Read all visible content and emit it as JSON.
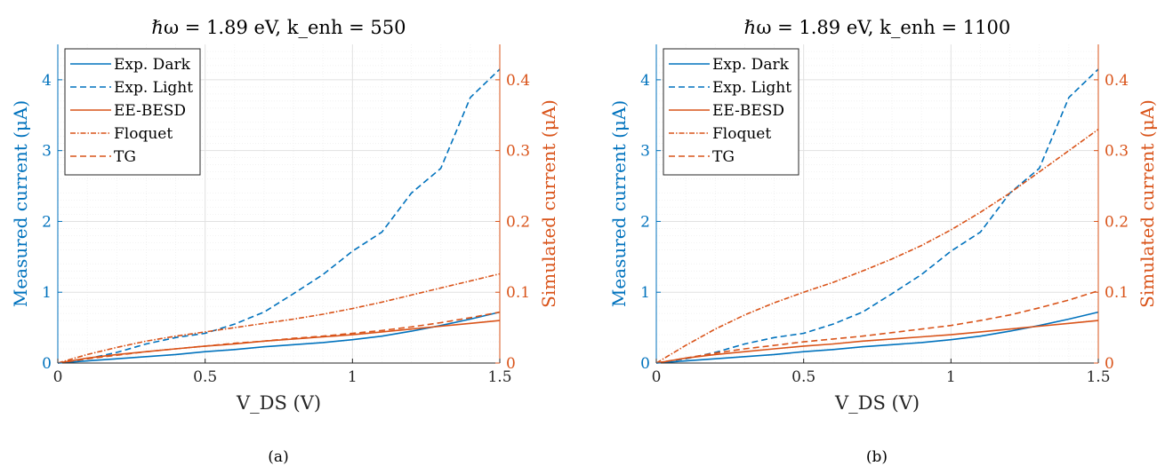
{
  "colors": {
    "measured": "#0072BD",
    "simulated": "#D95319",
    "axis": "#262626",
    "grid": "#e1e1e1"
  },
  "chart_data": [
    {
      "type": "line",
      "caption": "(a)",
      "title": "ℏω = 1.89 eV, k_enh = 550",
      "xlabel": "V_DS (V)",
      "ylabel_left": "Measured current (μA)",
      "ylabel_right": "Simulated current (μA)",
      "xlim": [
        0,
        1.5
      ],
      "ylim_left": [
        0,
        4.5
      ],
      "ylim_right": [
        0,
        0.45
      ],
      "xticks": [
        "0",
        "0.5",
        "1",
        "1.5"
      ],
      "yticks_left": [
        "0",
        "1",
        "2",
        "3",
        "4"
      ],
      "yticks_right": [
        "0",
        "0.1",
        "0.2",
        "0.3",
        "0.4"
      ],
      "grid": true,
      "legend_position": "top-left",
      "x": [
        0,
        0.1,
        0.2,
        0.3,
        0.4,
        0.5,
        0.6,
        0.7,
        0.8,
        0.9,
        1.0,
        1.1,
        1.2,
        1.3,
        1.4,
        1.5
      ],
      "series": [
        {
          "name": "Exp. Dark",
          "axis": "left",
          "style": "solid",
          "values": [
            0,
            0.03,
            0.06,
            0.09,
            0.12,
            0.16,
            0.19,
            0.23,
            0.26,
            0.29,
            0.33,
            0.38,
            0.45,
            0.53,
            0.62,
            0.72
          ]
        },
        {
          "name": "Exp. Light",
          "axis": "left",
          "style": "dashed",
          "values": [
            0,
            0.06,
            0.15,
            0.27,
            0.36,
            0.42,
            0.55,
            0.72,
            0.98,
            1.25,
            1.58,
            1.85,
            2.4,
            2.75,
            3.75,
            4.15
          ]
        },
        {
          "name": "EE-BESD",
          "axis": "right",
          "style": "solid",
          "values": [
            0,
            0.007,
            0.012,
            0.016,
            0.02,
            0.024,
            0.027,
            0.031,
            0.034,
            0.037,
            0.04,
            0.044,
            0.048,
            0.052,
            0.056,
            0.06
          ]
        },
        {
          "name": "Floquet",
          "axis": "right",
          "style": "dashdot",
          "values": [
            0,
            0.012,
            0.022,
            0.031,
            0.038,
            0.044,
            0.05,
            0.056,
            0.062,
            0.069,
            0.077,
            0.086,
            0.096,
            0.106,
            0.116,
            0.126
          ]
        },
        {
          "name": "TG",
          "axis": "right",
          "style": "dashed",
          "values": [
            0,
            0.006,
            0.011,
            0.016,
            0.02,
            0.024,
            0.028,
            0.031,
            0.035,
            0.038,
            0.042,
            0.046,
            0.051,
            0.057,
            0.064,
            0.072
          ]
        }
      ]
    },
    {
      "type": "line",
      "caption": "(b)",
      "title": "ℏω = 1.89 eV, k_enh = 1100",
      "xlabel": "V_DS (V)",
      "ylabel_left": "Measured current (μA)",
      "ylabel_right": "Simulated current (μA)",
      "xlim": [
        0,
        1.5
      ],
      "ylim_left": [
        0,
        4.5
      ],
      "ylim_right": [
        0,
        0.45
      ],
      "xticks": [
        "0",
        "0.5",
        "1",
        "1.5"
      ],
      "yticks_left": [
        "0",
        "1",
        "2",
        "3",
        "4"
      ],
      "yticks_right": [
        "0",
        "0.1",
        "0.2",
        "0.3",
        "0.4"
      ],
      "grid": true,
      "legend_position": "top-left",
      "x": [
        0,
        0.1,
        0.2,
        0.3,
        0.4,
        0.5,
        0.6,
        0.7,
        0.8,
        0.9,
        1.0,
        1.1,
        1.2,
        1.3,
        1.4,
        1.5
      ],
      "series": [
        {
          "name": "Exp. Dark",
          "axis": "left",
          "style": "solid",
          "values": [
            0,
            0.03,
            0.06,
            0.09,
            0.12,
            0.16,
            0.19,
            0.23,
            0.26,
            0.29,
            0.33,
            0.38,
            0.45,
            0.53,
            0.62,
            0.72
          ]
        },
        {
          "name": "Exp. Light",
          "axis": "left",
          "style": "dashed",
          "values": [
            0,
            0.06,
            0.15,
            0.27,
            0.36,
            0.42,
            0.55,
            0.72,
            0.98,
            1.25,
            1.58,
            1.85,
            2.4,
            2.75,
            3.75,
            4.15
          ]
        },
        {
          "name": "EE-BESD",
          "axis": "right",
          "style": "solid",
          "values": [
            0,
            0.007,
            0.012,
            0.016,
            0.02,
            0.024,
            0.027,
            0.031,
            0.034,
            0.037,
            0.04,
            0.044,
            0.048,
            0.052,
            0.056,
            0.06
          ]
        },
        {
          "name": "Floquet",
          "axis": "right",
          "style": "dashdot",
          "values": [
            0,
            0.025,
            0.048,
            0.068,
            0.085,
            0.1,
            0.114,
            0.13,
            0.147,
            0.166,
            0.188,
            0.213,
            0.24,
            0.27,
            0.3,
            0.33
          ]
        },
        {
          "name": "TG",
          "axis": "right",
          "style": "dashed",
          "values": [
            0,
            0.007,
            0.014,
            0.02,
            0.025,
            0.03,
            0.034,
            0.038,
            0.043,
            0.048,
            0.053,
            0.06,
            0.068,
            0.078,
            0.089,
            0.102
          ]
        }
      ]
    }
  ]
}
